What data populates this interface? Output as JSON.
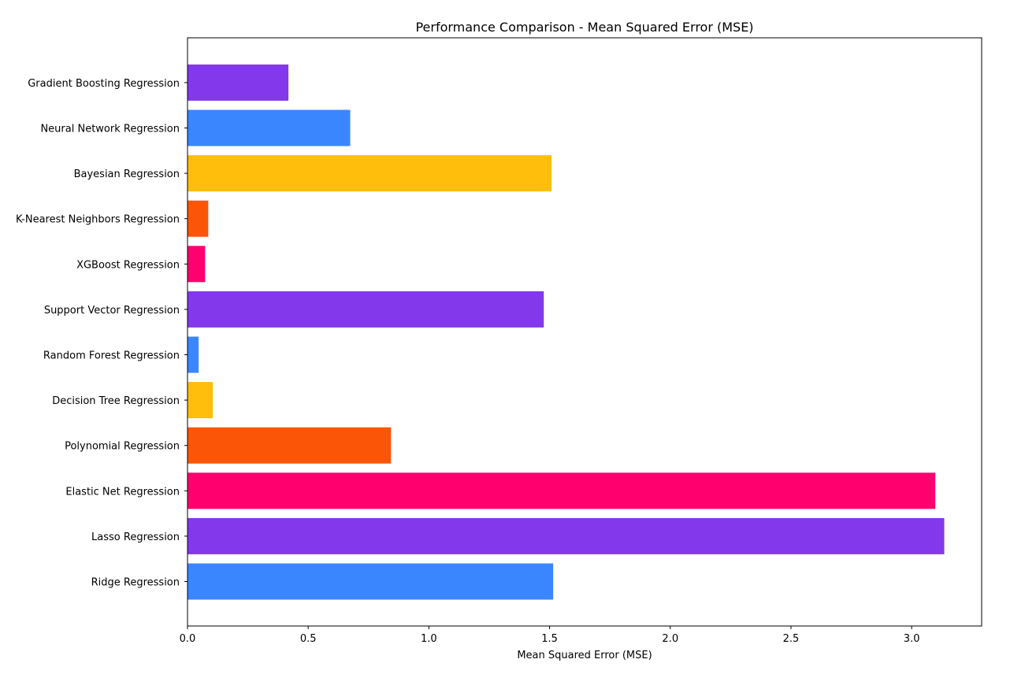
{
  "chart_data": {
    "type": "bar",
    "orientation": "horizontal",
    "title": "Performance Comparison - Mean Squared Error (MSE)",
    "xlabel": "Mean Squared Error (MSE)",
    "ylabel": "",
    "xlim": [
      0,
      3.29
    ],
    "xticks": [
      0.0,
      0.5,
      1.0,
      1.5,
      2.0,
      2.5,
      3.0
    ],
    "xtick_labels": [
      "0.0",
      "0.5",
      "1.0",
      "1.5",
      "2.0",
      "2.5",
      "3.0"
    ],
    "grid": false,
    "categories": [
      "Ridge Regression",
      "Lasso Regression",
      "Elastic Net Regression",
      "Polynomial Regression",
      "Decision Tree Regression",
      "Random Forest Regression",
      "Support Vector Regression",
      "XGBoost Regression",
      "K-Nearest Neighbors Regression",
      "Bayesian Regression",
      "Neural Network Regression",
      "Gradient Boosting Regression"
    ],
    "values": [
      1.515,
      3.135,
      3.098,
      0.843,
      0.105,
      0.046,
      1.476,
      0.073,
      0.086,
      1.508,
      0.674,
      0.418
    ],
    "colors": [
      "#3a86ff",
      "#8338ec",
      "#ff006e",
      "#fb5607",
      "#ffbe0b",
      "#3a86ff",
      "#8338ec",
      "#ff006e",
      "#fb5607",
      "#ffbe0b",
      "#3a86ff",
      "#8338ec"
    ]
  }
}
